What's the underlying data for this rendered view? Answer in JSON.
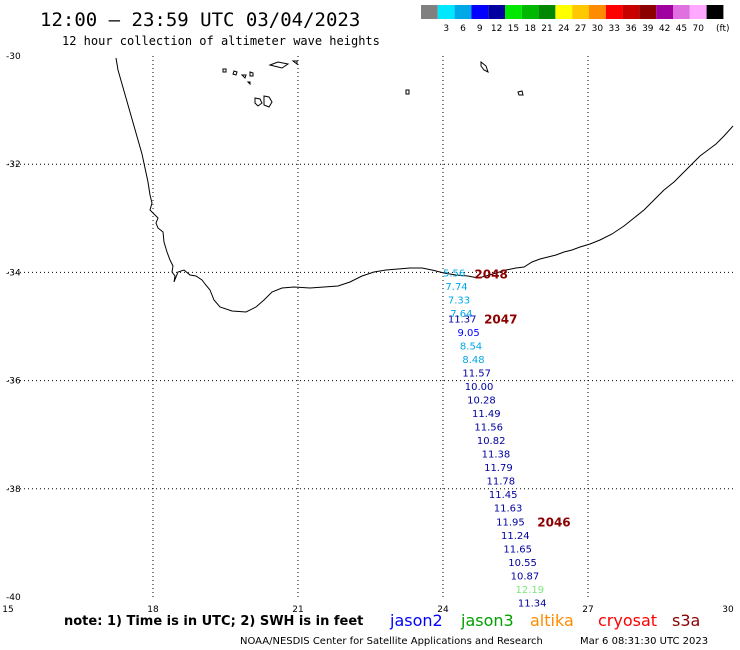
{
  "header": {
    "title": "12:00 – 23:59 UTC 03/04/2023",
    "subtitle": "12 hour collection of altimeter wave heights"
  },
  "legend": {
    "bins": [
      {
        "label": "",
        "color": "#808080"
      },
      {
        "label": "3",
        "color": "#00e8ff"
      },
      {
        "label": "6",
        "color": "#00a8e8"
      },
      {
        "label": "9",
        "color": "#0000ff"
      },
      {
        "label": "12",
        "color": "#0000a0"
      },
      {
        "label": "15",
        "color": "#00e800"
      },
      {
        "label": "18",
        "color": "#00b800"
      },
      {
        "label": "21",
        "color": "#008800"
      },
      {
        "label": "24",
        "color": "#ffff00"
      },
      {
        "label": "27",
        "color": "#ffc800"
      },
      {
        "label": "30",
        "color": "#ff8c00"
      },
      {
        "label": "33",
        "color": "#ff0000"
      },
      {
        "label": "36",
        "color": "#c80000"
      },
      {
        "label": "39",
        "color": "#8c0000"
      },
      {
        "label": "42",
        "color": "#a000a0"
      },
      {
        "label": "45",
        "color": "#e070e0"
      },
      {
        "label": "70",
        "color": "#ffa8ff"
      },
      {
        "label": "",
        "color": "#000000"
      }
    ],
    "unit": "(ft)"
  },
  "map": {
    "lon_range": [
      15,
      30
    ],
    "lat_range": [
      -40,
      -30
    ],
    "lat_ticks": [
      "-30",
      "-32",
      "-34",
      "-36",
      "-38",
      "-40"
    ],
    "lon_ticks": [
      "15",
      "18",
      "21",
      "24",
      "27",
      "30"
    ],
    "grid": true
  },
  "measurements": [
    {
      "value": "5.56",
      "lon": 24.0,
      "lat": -34.0,
      "color": "#00a8e8"
    },
    {
      "value": "7.74",
      "lon": 24.05,
      "lat": -34.25,
      "color": "#00a8e8"
    },
    {
      "value": "7.33",
      "lon": 24.1,
      "lat": -34.5,
      "color": "#00a8e8"
    },
    {
      "value": "7.64",
      "lon": 24.15,
      "lat": -34.75,
      "color": "#00a8e8"
    },
    {
      "value": "11.37",
      "lon": 24.1,
      "lat": -34.85,
      "color": "#0000a0"
    },
    {
      "value": "9.05",
      "lon": 24.3,
      "lat": -35.1,
      "color": "#0000ff"
    },
    {
      "value": "8.54",
      "lon": 24.35,
      "lat": -35.35,
      "color": "#00a8e8"
    },
    {
      "value": "8.48",
      "lon": 24.4,
      "lat": -35.6,
      "color": "#00a8e8"
    },
    {
      "value": "11.57",
      "lon": 24.4,
      "lat": -35.85,
      "color": "#0000a0"
    },
    {
      "value": "10.00",
      "lon": 24.45,
      "lat": -36.1,
      "color": "#0000a0"
    },
    {
      "value": "10.28",
      "lon": 24.5,
      "lat": -36.35,
      "color": "#0000a0"
    },
    {
      "value": "11.49",
      "lon": 24.6,
      "lat": -36.6,
      "color": "#0000a0"
    },
    {
      "value": "11.56",
      "lon": 24.65,
      "lat": -36.85,
      "color": "#0000a0"
    },
    {
      "value": "10.82",
      "lon": 24.7,
      "lat": -37.1,
      "color": "#0000a0"
    },
    {
      "value": "11.38",
      "lon": 24.8,
      "lat": -37.35,
      "color": "#0000a0"
    },
    {
      "value": "11.79",
      "lon": 24.85,
      "lat": -37.6,
      "color": "#0000a0"
    },
    {
      "value": "11.78",
      "lon": 24.9,
      "lat": -37.85,
      "color": "#0000a0"
    },
    {
      "value": "11.45",
      "lon": 24.95,
      "lat": -38.1,
      "color": "#0000a0"
    },
    {
      "value": "11.63",
      "lon": 25.05,
      "lat": -38.35,
      "color": "#0000a0"
    },
    {
      "value": "11.95",
      "lon": 25.1,
      "lat": -38.6,
      "color": "#0000a0"
    },
    {
      "value": "11.24",
      "lon": 25.2,
      "lat": -38.85,
      "color": "#0000a0"
    },
    {
      "value": "11.65",
      "lon": 25.25,
      "lat": -39.1,
      "color": "#0000a0"
    },
    {
      "value": "10.55",
      "lon": 25.35,
      "lat": -39.35,
      "color": "#0000a0"
    },
    {
      "value": "10.87",
      "lon": 25.4,
      "lat": -39.6,
      "color": "#0000a0"
    },
    {
      "value": "12.19",
      "lon": 25.5,
      "lat": -39.85,
      "color": "#78e878"
    },
    {
      "value": "11.34",
      "lon": 25.55,
      "lat": -40.1,
      "color": "#0000a0"
    }
  ],
  "times": [
    {
      "value": "2048",
      "lon": 24.65,
      "lat": -34.02,
      "color": "#8c0000"
    },
    {
      "value": "2047",
      "lon": 24.85,
      "lat": -34.85,
      "color": "#8c0000"
    },
    {
      "value": "2046",
      "lon": 25.95,
      "lat": -38.6,
      "color": "#8c0000"
    }
  ],
  "footer": {
    "note": "note:  1) Time is in UTC;  2) SWH is in feet",
    "satellites": [
      {
        "name": "jason2",
        "color": "#0000ff"
      },
      {
        "name": "jason3",
        "color": "#00a000"
      },
      {
        "name": "altika",
        "color": "#ff8c00"
      },
      {
        "name": "cryosat",
        "color": "#ff0000"
      },
      {
        "name": "s3a",
        "color": "#8c0000"
      }
    ],
    "credit": "NOAA/NESDIS Center for Satellite Applications and Research",
    "timestamp": "Mar  6 08:31:30 UTC 2023"
  }
}
